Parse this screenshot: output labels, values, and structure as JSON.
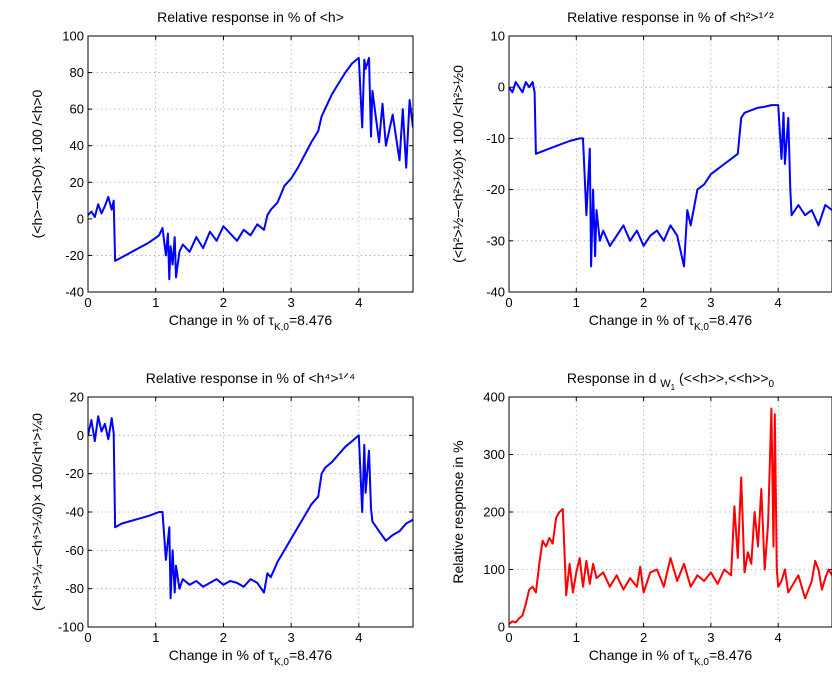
{
  "chart_data": [
    {
      "type": "line",
      "title": "Relative response in % of <h>",
      "xlabel": "Change in % of τ",
      "xlabel_sub": "K,0",
      "xlabel_tail": "=8.476",
      "ylabel": "(<h>−<h>0)× 100 /<h>0",
      "xlim": [
        0,
        4.8
      ],
      "ylim": [
        -40,
        100
      ],
      "xticks": [
        "0",
        "1",
        "2",
        "3",
        "4"
      ],
      "yticks": [
        "-40",
        "-20",
        "0",
        "20",
        "40",
        "60",
        "80",
        "100"
      ],
      "grid": true,
      "series": [
        {
          "color": "#0000ff",
          "x": [
            0,
            0.05,
            0.1,
            0.15,
            0.2,
            0.25,
            0.3,
            0.35,
            0.38,
            0.4,
            0.5,
            0.7,
            0.9,
            1.05,
            1.1,
            1.15,
            1.18,
            1.2,
            1.22,
            1.25,
            1.28,
            1.3,
            1.35,
            1.4,
            1.5,
            1.6,
            1.7,
            1.8,
            1.9,
            2.0,
            2.1,
            2.2,
            2.3,
            2.4,
            2.5,
            2.6,
            2.65,
            2.7,
            2.8,
            2.9,
            3.0,
            3.1,
            3.2,
            3.3,
            3.4,
            3.45,
            3.5,
            3.6,
            3.7,
            3.8,
            3.9,
            4.0,
            4.05,
            4.08,
            4.1,
            4.15,
            4.18,
            4.2,
            4.3,
            4.35,
            4.4,
            4.5,
            4.6,
            4.65,
            4.7,
            4.75,
            4.8
          ],
          "y": [
            2,
            4,
            1,
            8,
            3,
            7,
            12,
            5,
            10,
            -23,
            -21,
            -17,
            -13,
            -9,
            -5,
            -20,
            -8,
            -33,
            -15,
            -25,
            -10,
            -32,
            -18,
            -14,
            -18,
            -10,
            -16,
            -7,
            -12,
            -4,
            -8,
            -12,
            -6,
            -9,
            -3,
            -6,
            2,
            5,
            9,
            18,
            22,
            28,
            35,
            42,
            48,
            56,
            60,
            68,
            74,
            80,
            85,
            88,
            50,
            87,
            82,
            88,
            45,
            70,
            42,
            63,
            40,
            57,
            32,
            60,
            28,
            65,
            50
          ]
        }
      ]
    },
    {
      "type": "line",
      "title": "Relative response in % of <h²>¹ᐟ²",
      "xlabel": "Change in % of τ",
      "xlabel_sub": "K,0",
      "xlabel_tail": "=8.476",
      "ylabel": "(<h²>½−<h²>½0)× 100 /<h²>½0",
      "xlim": [
        0,
        4.8
      ],
      "ylim": [
        -40,
        10
      ],
      "xticks": [
        "0",
        "1",
        "2",
        "3",
        "4"
      ],
      "yticks": [
        "-40",
        "-30",
        "-20",
        "-10",
        "0",
        "10"
      ],
      "grid": true,
      "series": [
        {
          "color": "#0000ff",
          "x": [
            0,
            0.05,
            0.1,
            0.15,
            0.2,
            0.25,
            0.3,
            0.35,
            0.38,
            0.4,
            0.5,
            0.7,
            0.9,
            1.05,
            1.1,
            1.15,
            1.2,
            1.22,
            1.25,
            1.28,
            1.3,
            1.35,
            1.4,
            1.5,
            1.6,
            1.7,
            1.8,
            1.9,
            2.0,
            2.1,
            2.2,
            2.3,
            2.4,
            2.5,
            2.6,
            2.65,
            2.7,
            2.8,
            2.9,
            3.0,
            3.1,
            3.2,
            3.3,
            3.4,
            3.45,
            3.5,
            3.6,
            3.7,
            3.8,
            3.9,
            4.0,
            4.05,
            4.08,
            4.1,
            4.15,
            4.18,
            4.2,
            4.3,
            4.4,
            4.5,
            4.6,
            4.7,
            4.8
          ],
          "y": [
            0,
            -1,
            1,
            0,
            -1,
            1,
            0,
            1,
            -1,
            -13,
            -12.5,
            -11.5,
            -10.5,
            -10,
            -10,
            -25,
            -12,
            -35,
            -20,
            -33,
            -24,
            -30,
            -28,
            -31,
            -29,
            -27,
            -30,
            -28,
            -31,
            -29,
            -28,
            -30,
            -27,
            -29,
            -35,
            -24,
            -27,
            -20,
            -19,
            -17,
            -16,
            -15,
            -14,
            -13,
            -6,
            -5,
            -4.5,
            -4,
            -3.8,
            -3.5,
            -3.5,
            -14,
            -5,
            -15,
            -6,
            -20,
            -25,
            -23,
            -25,
            -24,
            -27,
            -23,
            -24
          ]
        }
      ]
    },
    {
      "type": "line",
      "title": "Relative response in % of <h⁴>¹ᐟ⁴",
      "xlabel": "Change in % of τ",
      "xlabel_sub": "K,0",
      "xlabel_tail": "=8.476",
      "ylabel": "(<h⁴>¼−<h⁴>¼0)× 100/<h⁴>¼0",
      "xlim": [
        0,
        4.8
      ],
      "ylim": [
        -100,
        20
      ],
      "xticks": [
        "0",
        "1",
        "2",
        "3",
        "4"
      ],
      "yticks": [
        "-100",
        "-80",
        "-60",
        "-40",
        "-20",
        "0",
        "20"
      ],
      "grid": true,
      "series": [
        {
          "color": "#0000ff",
          "x": [
            0,
            0.05,
            0.1,
            0.15,
            0.2,
            0.25,
            0.3,
            0.35,
            0.38,
            0.4,
            0.5,
            0.7,
            0.9,
            1.05,
            1.1,
            1.15,
            1.2,
            1.22,
            1.25,
            1.28,
            1.3,
            1.35,
            1.4,
            1.5,
            1.6,
            1.7,
            1.8,
            1.9,
            2.0,
            2.1,
            2.2,
            2.3,
            2.4,
            2.5,
            2.6,
            2.65,
            2.7,
            2.8,
            2.9,
            3.0,
            3.1,
            3.2,
            3.3,
            3.4,
            3.45,
            3.5,
            3.6,
            3.7,
            3.8,
            3.9,
            4.0,
            4.05,
            4.08,
            4.1,
            4.15,
            4.18,
            4.2,
            4.3,
            4.4,
            4.5,
            4.6,
            4.7,
            4.8
          ],
          "y": [
            0,
            8,
            -3,
            10,
            2,
            6,
            -2,
            9,
            1,
            -48,
            -46,
            -44,
            -42,
            -40,
            -40,
            -65,
            -48,
            -85,
            -60,
            -82,
            -68,
            -80,
            -75,
            -78,
            -76,
            -79,
            -77,
            -75,
            -78,
            -76,
            -77,
            -79,
            -75,
            -77,
            -82,
            -72,
            -74,
            -66,
            -60,
            -54,
            -48,
            -42,
            -36,
            -32,
            -20,
            -17,
            -14,
            -10,
            -6,
            -3,
            0,
            -40,
            -5,
            -30,
            -8,
            -38,
            -45,
            -50,
            -55,
            -52,
            -50,
            -46,
            -44
          ]
        }
      ]
    },
    {
      "type": "line",
      "title": "Response in d",
      "title_sub": "W",
      "title_subsub": "1",
      "title_tail": "(<<h>>,<<h>>",
      "title_tail_sub": "0",
      "xlabel": "Change in % of τ",
      "xlabel_sub": "K,0",
      "xlabel_tail": "=8.476",
      "ylabel": "Relative response in %",
      "xlim": [
        0,
        4.8
      ],
      "ylim": [
        0,
        400
      ],
      "xticks": [
        "0",
        "1",
        "2",
        "3",
        "4"
      ],
      "yticks": [
        "0",
        "100",
        "200",
        "300",
        "400"
      ],
      "grid": true,
      "series": [
        {
          "color": "#ff0000",
          "x": [
            0,
            0.05,
            0.1,
            0.15,
            0.2,
            0.25,
            0.3,
            0.35,
            0.4,
            0.45,
            0.5,
            0.55,
            0.6,
            0.65,
            0.7,
            0.75,
            0.8,
            0.85,
            0.9,
            0.95,
            1.0,
            1.05,
            1.1,
            1.15,
            1.2,
            1.25,
            1.3,
            1.4,
            1.5,
            1.6,
            1.7,
            1.8,
            1.9,
            1.95,
            2.0,
            2.1,
            2.2,
            2.3,
            2.4,
            2.5,
            2.6,
            2.7,
            2.8,
            2.9,
            3.0,
            3.1,
            3.2,
            3.3,
            3.35,
            3.4,
            3.45,
            3.5,
            3.55,
            3.6,
            3.65,
            3.7,
            3.75,
            3.8,
            3.85,
            3.9,
            3.93,
            3.95,
            3.98,
            4.0,
            4.05,
            4.1,
            4.15,
            4.2,
            4.3,
            4.4,
            4.5,
            4.55,
            4.6,
            4.65,
            4.7,
            4.75,
            4.8
          ],
          "y": [
            5,
            10,
            8,
            15,
            20,
            40,
            65,
            70,
            60,
            110,
            150,
            140,
            155,
            145,
            190,
            200,
            205,
            55,
            110,
            60,
            95,
            120,
            70,
            115,
            75,
            110,
            85,
            95,
            70,
            90,
            65,
            85,
            70,
            105,
            60,
            95,
            100,
            70,
            120,
            80,
            110,
            70,
            90,
            80,
            95,
            75,
            100,
            90,
            210,
            120,
            260,
            95,
            130,
            110,
            200,
            140,
            240,
            100,
            180,
            380,
            140,
            370,
            100,
            70,
            80,
            100,
            60,
            70,
            90,
            50,
            80,
            115,
            100,
            65,
            85,
            100,
            90
          ]
        }
      ]
    }
  ]
}
